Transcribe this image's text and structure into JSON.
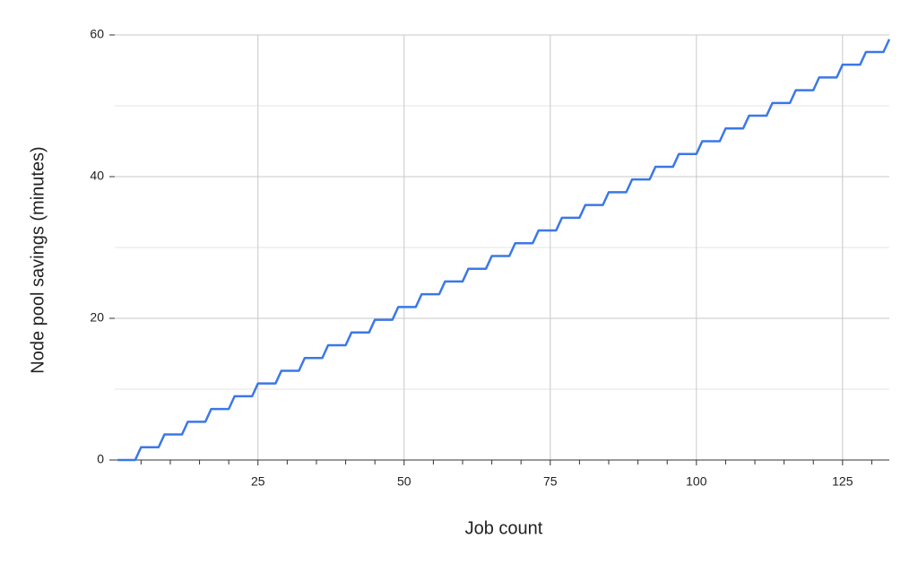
{
  "chart_data": {
    "type": "line",
    "xlabel": "Job count",
    "ylabel": "Node pool savings (minutes)",
    "x": [
      1,
      2,
      3,
      4,
      5,
      6,
      7,
      8,
      9,
      10,
      11,
      12,
      13,
      14,
      15,
      16,
      17,
      18,
      19,
      20,
      21,
      22,
      23,
      24,
      25,
      26,
      27,
      28,
      29,
      30,
      31,
      32,
      33,
      34,
      35,
      36,
      37,
      38,
      39,
      40,
      41,
      42,
      43,
      44,
      45,
      46,
      47,
      48,
      49,
      50,
      51,
      52,
      53,
      54,
      55,
      56,
      57,
      58,
      59,
      60,
      61,
      62,
      63,
      64,
      65,
      66,
      67,
      68,
      69,
      70,
      71,
      72,
      73,
      74,
      75,
      76,
      77,
      78,
      79,
      80,
      81,
      82,
      83,
      84,
      85,
      86,
      87,
      88,
      89,
      90,
      91,
      92,
      93,
      94,
      95,
      96,
      97,
      98,
      99,
      100,
      101,
      102,
      103,
      104,
      105,
      106,
      107,
      108,
      109,
      110,
      111,
      112,
      113,
      114,
      115,
      116,
      117,
      118,
      119,
      120,
      121,
      122,
      123,
      124,
      125,
      126,
      127,
      128,
      129,
      130,
      131,
      132,
      133
    ],
    "series": [
      {
        "color": "#3b78e7",
        "values": [
          0,
          0,
          0,
          0,
          1.8,
          1.8,
          1.8,
          1.8,
          3.6,
          3.6,
          3.6,
          3.6,
          5.4,
          5.4,
          5.4,
          5.4,
          7.2,
          7.2,
          7.2,
          7.2,
          9,
          9,
          9,
          9,
          10.8,
          10.8,
          10.8,
          10.8,
          12.6,
          12.6,
          12.6,
          12.6,
          14.4,
          14.4,
          14.4,
          14.4,
          16.2,
          16.2,
          16.2,
          16.2,
          18,
          18,
          18,
          18,
          19.8,
          19.8,
          19.8,
          19.8,
          21.6,
          21.6,
          21.6,
          21.6,
          23.4,
          23.4,
          23.4,
          23.4,
          25.2,
          25.2,
          25.2,
          25.2,
          27,
          27,
          27,
          27,
          28.8,
          28.8,
          28.8,
          28.8,
          30.6,
          30.6,
          30.6,
          30.6,
          32.4,
          32.4,
          32.4,
          32.4,
          34.2,
          34.2,
          34.2,
          34.2,
          36,
          36,
          36,
          36,
          37.8,
          37.8,
          37.8,
          37.8,
          39.6,
          39.6,
          39.6,
          39.6,
          41.4,
          41.4,
          41.4,
          41.4,
          43.2,
          43.2,
          43.2,
          43.2,
          45,
          45,
          45,
          45,
          46.8,
          46.8,
          46.8,
          46.8,
          48.6,
          48.6,
          48.6,
          48.6,
          50.4,
          50.4,
          50.4,
          50.4,
          52.2,
          52.2,
          52.2,
          52.2,
          54,
          54,
          54,
          54,
          55.8,
          55.8,
          55.8,
          55.8,
          57.6,
          57.6,
          57.6,
          57.6,
          59.4
        ]
      }
    ],
    "xlim": [
      0.5,
      133
    ],
    "xticks": [
      25,
      50,
      75,
      100,
      125
    ],
    "xminorticks": [
      5,
      10,
      15,
      20,
      30,
      35,
      40,
      45,
      55,
      60,
      65,
      70,
      80,
      85,
      90,
      95,
      105,
      110,
      115,
      120,
      130
    ],
    "ylim": [
      0,
      60
    ],
    "yticks": [
      0,
      20,
      40,
      60
    ],
    "yminorticks": [
      10,
      30,
      50
    ],
    "grid": true
  }
}
